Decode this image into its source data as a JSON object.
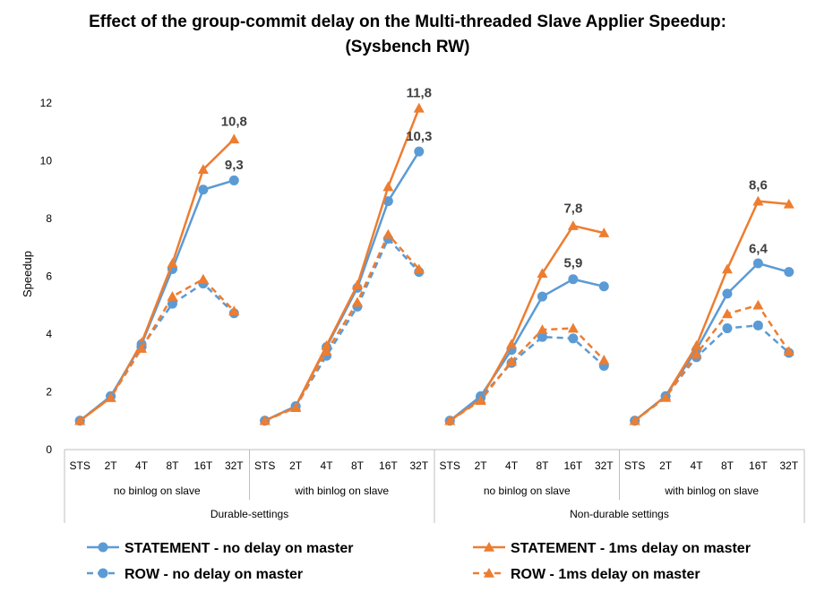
{
  "chart_data": {
    "type": "line",
    "title_line1": "Effect of the group-commit delay on the Multi-threaded Slave Applier Speedup:",
    "title_line2": "(Sysbench RW)",
    "ylabel": "Speedup",
    "ylim": [
      0,
      12
    ],
    "yticks": [
      "0",
      "2",
      "4",
      "6",
      "8",
      "10",
      "12"
    ],
    "grid": false,
    "legend_position": "bottom",
    "categories": [
      "STS",
      "2T",
      "4T",
      "8T",
      "16T",
      "32T"
    ],
    "subgroups": [
      "no binlog on slave",
      "with binlog on slave",
      "no binlog on slave",
      "with binlog on slave"
    ],
    "groups": [
      "Durable-settings",
      "Non-durable settings"
    ],
    "colors": {
      "blue": "#5B9BD5",
      "orange": "#ED7D31"
    },
    "series": [
      {
        "name": "STATEMENT - no delay on master",
        "color": "#5B9BD5",
        "marker": "circle",
        "dash": "solid",
        "values": [
          [
            1.0,
            1.85,
            3.65,
            6.25,
            9.0,
            9.32
          ],
          [
            1.0,
            1.5,
            3.55,
            5.6,
            8.6,
            10.32
          ],
          [
            1.0,
            1.85,
            3.45,
            5.3,
            5.9,
            5.65
          ],
          [
            1.0,
            1.85,
            3.45,
            5.4,
            6.45,
            6.15
          ]
        ]
      },
      {
        "name": "STATEMENT - 1ms delay on master",
        "color": "#ED7D31",
        "marker": "triangle",
        "dash": "solid",
        "values": [
          [
            1.0,
            1.8,
            3.7,
            6.45,
            9.7,
            10.75
          ],
          [
            1.0,
            1.5,
            3.6,
            5.7,
            9.1,
            11.82
          ],
          [
            1.0,
            1.75,
            3.65,
            6.1,
            7.75,
            7.5
          ],
          [
            1.0,
            1.85,
            3.6,
            6.25,
            8.6,
            8.5
          ]
        ]
      },
      {
        "name": "ROW - no delay on master",
        "color": "#5B9BD5",
        "marker": "circle",
        "dash": "dashed",
        "values": [
          [
            1.0,
            1.85,
            3.55,
            5.05,
            5.75,
            4.72
          ],
          [
            1.0,
            1.5,
            3.25,
            4.95,
            7.3,
            6.15
          ],
          [
            1.0,
            1.8,
            3.0,
            3.9,
            3.85,
            2.9
          ],
          [
            1.0,
            1.85,
            3.2,
            4.2,
            4.3,
            3.35
          ]
        ]
      },
      {
        "name": "ROW - 1ms delay on master",
        "color": "#ED7D31",
        "marker": "triangle",
        "dash": "dashed",
        "values": [
          [
            1.0,
            1.8,
            3.5,
            5.3,
            5.9,
            4.8
          ],
          [
            1.0,
            1.45,
            3.4,
            5.1,
            7.45,
            6.25
          ],
          [
            1.0,
            1.7,
            3.05,
            4.15,
            4.2,
            3.1
          ],
          [
            1.0,
            1.8,
            3.3,
            4.7,
            5.0,
            3.4
          ]
        ]
      }
    ],
    "annotations": [
      {
        "text": "10,8",
        "group": 0,
        "category": "32T",
        "value": 10.8
      },
      {
        "text": "9,3",
        "group": 0,
        "category": "32T",
        "value": 9.3
      },
      {
        "text": "11,8",
        "group": 1,
        "category": "32T",
        "value": 11.8
      },
      {
        "text": "10,3",
        "group": 1,
        "category": "32T",
        "value": 10.3
      },
      {
        "text": "7,8",
        "group": 2,
        "category": "16T",
        "value": 7.8
      },
      {
        "text": "5,9",
        "group": 2,
        "category": "16T",
        "value": 5.9
      },
      {
        "text": "8,6",
        "group": 3,
        "category": "16T",
        "value": 8.6
      },
      {
        "text": "6,4",
        "group": 3,
        "category": "16T",
        "value": 6.4
      }
    ]
  }
}
